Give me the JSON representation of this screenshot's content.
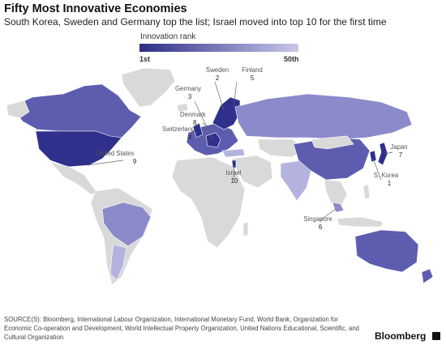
{
  "header": {
    "title": "Fifty Most Innovative Economies",
    "subtitle": "South Korea, Sweden and Germany top the list; Israel moved into top 10 for the first time"
  },
  "legend": {
    "title": "Innovation rank",
    "min_label": "1st",
    "max_label": "50th",
    "color_low_rank": "#2d2d86",
    "color_high_rank": "#c9c8ea"
  },
  "map": {
    "colors": {
      "ocean": "#ffffff",
      "land_default": "#d9d9d9",
      "rank_1_10": "#2f2f8c",
      "rank_11_20": "#5d5db0",
      "rank_21_35": "#8b8acb",
      "rank_36_50": "#b4b3e0"
    },
    "callouts": [
      {
        "country": "Sweden",
        "rank": "2"
      },
      {
        "country": "Finland",
        "rank": "5"
      },
      {
        "country": "Germany",
        "rank": "3"
      },
      {
        "country": "Denmark",
        "rank": "8"
      },
      {
        "country": "Switzerland",
        "rank": "4"
      },
      {
        "country": "United States",
        "rank": "9"
      },
      {
        "country": "Israel",
        "rank": "10"
      },
      {
        "country": "Japan",
        "rank": "7"
      },
      {
        "country": "S. Korea",
        "rank": "1"
      },
      {
        "country": "Singapore",
        "rank": "6"
      }
    ]
  },
  "footer": {
    "sources": "SOURCE(S): Bloomberg, International Labour Organization, International Monetary Fund, World Bank, Organization for Economic Co-operation and Development, World Intellectual Property Organization, United Nations Educational, Scientific, and Cultural Organization",
    "brand": "Bloomberg"
  }
}
